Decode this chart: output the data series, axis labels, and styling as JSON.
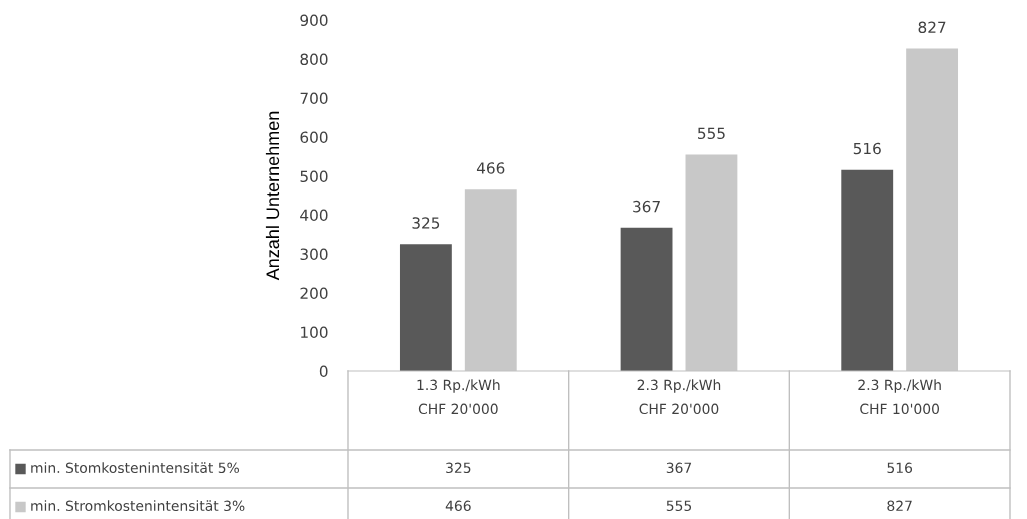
{
  "chart_data": {
    "type": "bar",
    "ylabel": "Anzahl Unternehmen",
    "categories": [
      "1.3 Rp./kWh\nCHF 20'000",
      "2.3 Rp./kWh\nCHF 20'000",
      "2.3 Rp./kWh\nCHF 10'000"
    ],
    "series": [
      {
        "name": "min. Stomkostenintensität 5%",
        "color": "#595959",
        "values": [
          325,
          367,
          516
        ],
        "value_labels": [
          "325",
          "367",
          "516"
        ]
      },
      {
        "name": "min. Stromkostenintensität 3%",
        "color": "#c8c8c8",
        "values": [
          466,
          555,
          827
        ],
        "value_labels": [
          "466",
          "555",
          "827"
        ]
      }
    ],
    "ylim": [
      0,
      900
    ],
    "yticks": [
      0,
      100,
      200,
      300,
      400,
      500,
      600,
      700,
      800,
      900
    ],
    "grid": false,
    "data_labels": true,
    "legend": "bottom",
    "annotations": [
      "325",
      "367",
      "516",
      "466",
      "555",
      "827"
    ]
  }
}
